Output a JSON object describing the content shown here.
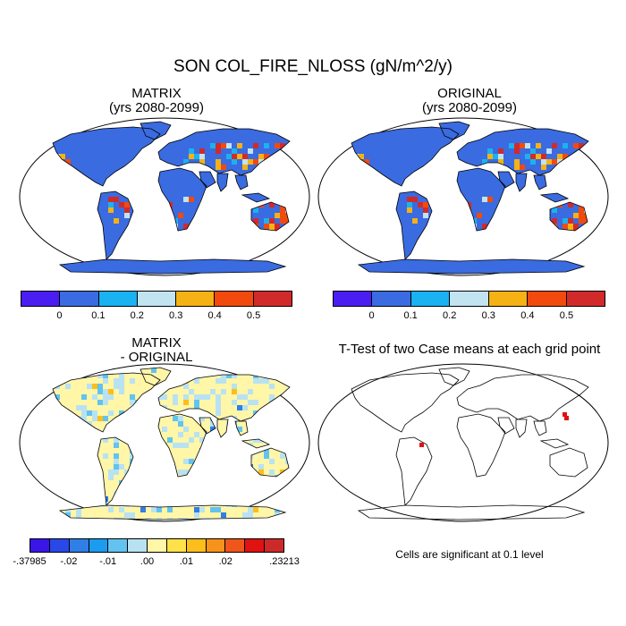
{
  "title": "SON COL_FIRE_NLOSS (gN/m^2/y)",
  "panels": {
    "matrix": {
      "title_line1": "MATRIX",
      "title_line2": "(yrs 2080-2099)"
    },
    "original": {
      "title_line1": "ORIGINAL",
      "title_line2": "(yrs 2080-2099)"
    },
    "difference": {
      "title_line1": "MATRIX",
      "title_line2": "- ORIGINAL"
    },
    "ttest": {
      "title": "T-Test of two Case means at each grid point",
      "note": "Cells are significant at 0.1 level"
    }
  },
  "colorbar_top": {
    "colors": [
      "#4a1ef0",
      "#3a6be0",
      "#1ab2f0",
      "#c2e3f0",
      "#f5b214",
      "#f24a0e",
      "#d12a2a"
    ],
    "labels": [
      "0",
      "0.1",
      "0.2",
      "0.3",
      "0.4",
      "0.5"
    ]
  },
  "colorbar_bottom": {
    "colors": [
      "#3a16e6",
      "#2a48e8",
      "#2f7fe6",
      "#1c9bf0",
      "#62c3f0",
      "#b8e2f2",
      "#fff6a8",
      "#ffe14a",
      "#fcbe1a",
      "#f7921a",
      "#f0561a",
      "#e01212",
      "#cc2a2a"
    ],
    "labels": [
      "-.37985",
      "-.02",
      "-.01",
      ".00",
      ".01",
      ".02",
      ".23213"
    ]
  },
  "colors": {
    "top_base": "#3a6be0",
    "diff_base": "#fff6a8",
    "ocean": "#ffffff",
    "significant": "#e01212"
  }
}
